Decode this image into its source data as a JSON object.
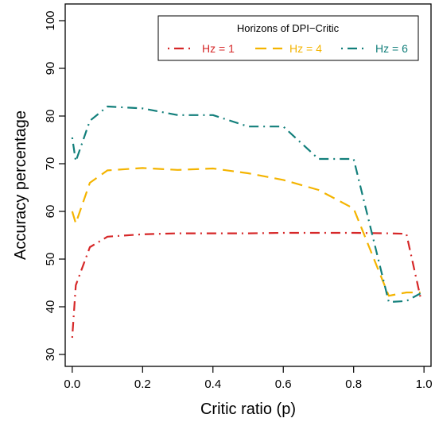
{
  "chart_data": {
    "type": "line",
    "xlabel": "Critic ratio (p)",
    "ylabel": "Accuracy percentage",
    "xlim": [
      -0.02,
      1.02
    ],
    "ylim": [
      27.5,
      103.5
    ],
    "xticks": [
      0.0,
      0.2,
      0.4,
      0.6,
      0.8,
      1.0
    ],
    "xtick_labels": [
      "0.0",
      "0.2",
      "0.4",
      "0.6",
      "0.8",
      "1.0"
    ],
    "yticks": [
      30,
      40,
      50,
      60,
      70,
      80,
      90,
      100
    ],
    "ytick_labels": [
      "30",
      "40",
      "50",
      "60",
      "70",
      "80",
      "90",
      "100"
    ],
    "grid": false,
    "legend": {
      "title": "Horizons of DPI−Critic",
      "position": "top-right"
    },
    "x": [
      0.0,
      0.01,
      0.05,
      0.1,
      0.2,
      0.3,
      0.4,
      0.5,
      0.6,
      0.7,
      0.8,
      0.9,
      0.95,
      0.99
    ],
    "series": [
      {
        "name": "Hz = 1",
        "color": "#d62728",
        "dash": "dot-dash",
        "values": [
          33.5,
          44.5,
          52.5,
          54.7,
          55.2,
          55.4,
          55.4,
          55.4,
          55.5,
          55.5,
          55.5,
          55.4,
          55.3,
          42.0
        ]
      },
      {
        "name": "Hz = 4",
        "color": "#f4b400",
        "dash": "long-dash",
        "values": [
          60.0,
          57.5,
          66.0,
          68.6,
          69.1,
          68.7,
          69.0,
          68.0,
          66.6,
          64.5,
          60.6,
          42.3,
          43.0,
          43.0
        ]
      },
      {
        "name": "Hz = 6",
        "color": "#127f7b",
        "dash": "dot-dash",
        "values": [
          75.5,
          70.5,
          79.0,
          82.0,
          81.6,
          80.2,
          80.2,
          77.8,
          77.8,
          71.0,
          71.0,
          41.0,
          41.2,
          42.8
        ]
      }
    ]
  }
}
